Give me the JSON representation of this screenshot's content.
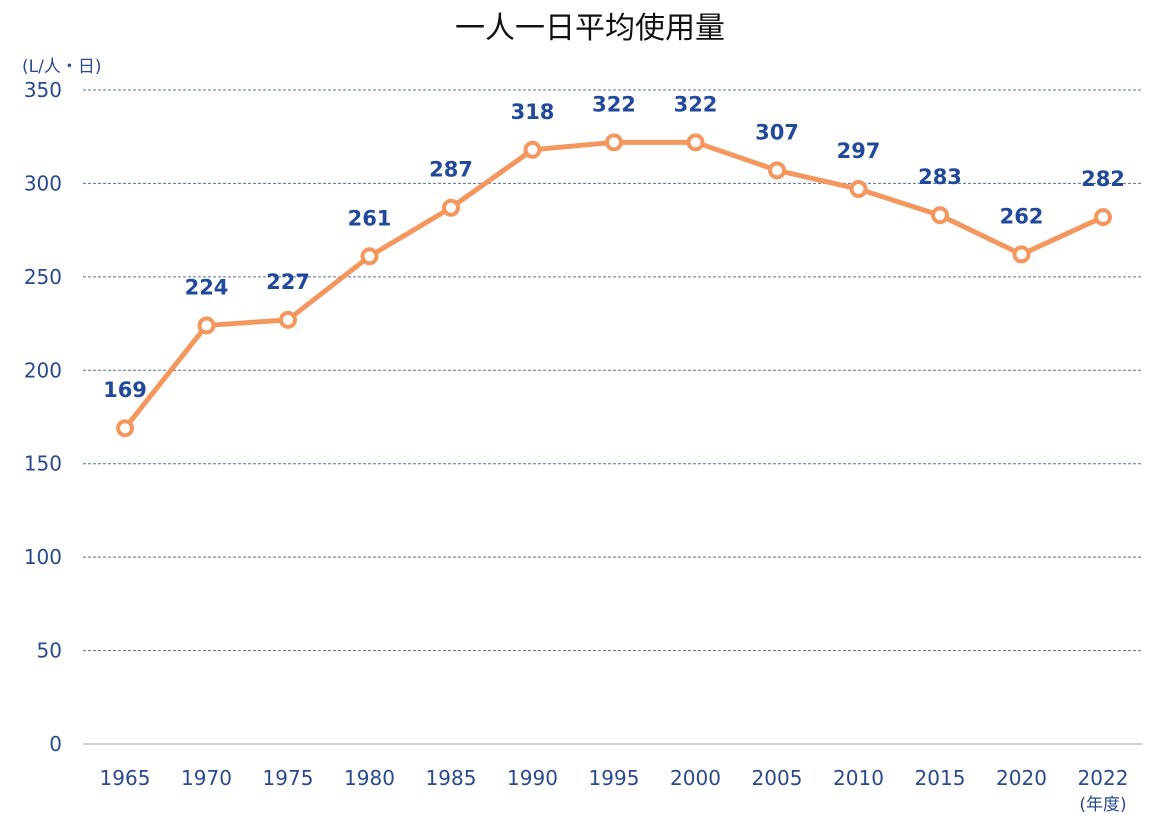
{
  "chart_data": {
    "type": "line",
    "title": "一人一日平均使用量",
    "ylabel": "(L/人・日)",
    "xlabel": "(年度)",
    "ylim": [
      0,
      350
    ],
    "yticks": [
      0,
      50,
      100,
      150,
      200,
      250,
      300,
      350
    ],
    "grid": true,
    "categories": [
      "1965",
      "1970",
      "1975",
      "1980",
      "1985",
      "1990",
      "1995",
      "2000",
      "2005",
      "2010",
      "2015",
      "2020",
      "2022"
    ],
    "series": [
      {
        "name": "一人一日平均使用量",
        "values": [
          169,
          224,
          227,
          261,
          287,
          318,
          322,
          322,
          307,
          297,
          283,
          262,
          282
        ]
      }
    ],
    "colors": {
      "line": "#f4975f",
      "label": "#23499a",
      "axis_text": "#2a4a8c",
      "grid": "#5a6f99"
    }
  }
}
